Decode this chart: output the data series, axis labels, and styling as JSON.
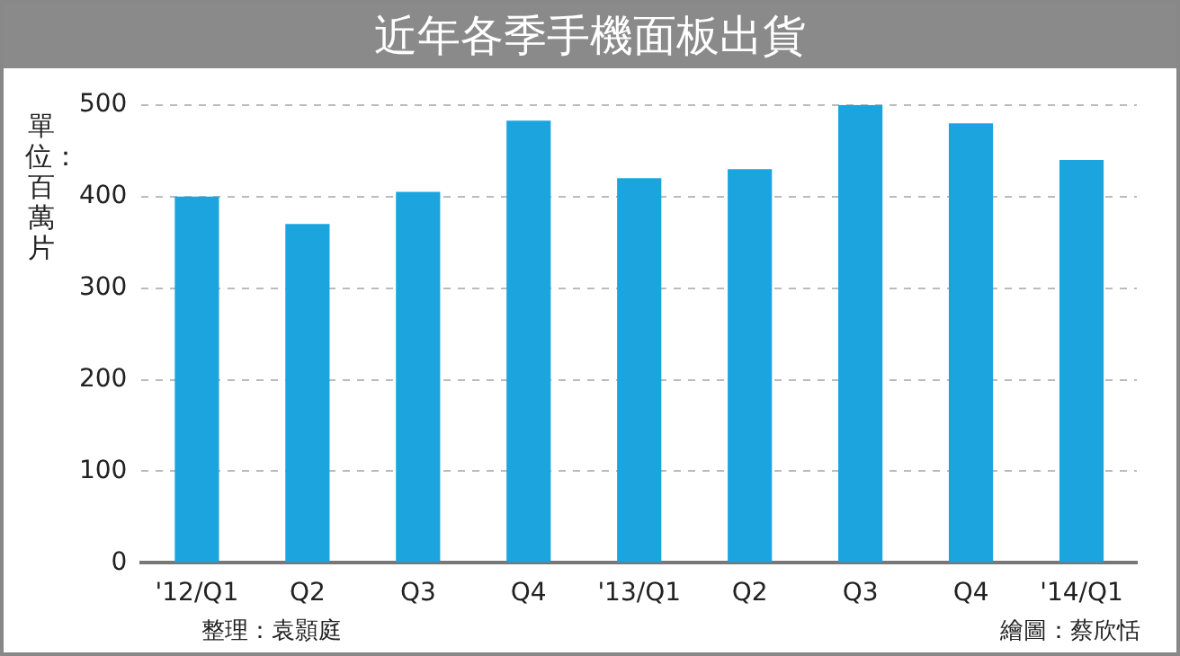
{
  "chart_data": {
    "type": "bar",
    "title": "近年各季手機面板出貨",
    "ylabel": "單位：百萬片",
    "categories": [
      "'12/Q1",
      "Q2",
      "Q3",
      "Q4",
      "'13/Q1",
      "Q2",
      "Q3",
      "Q4",
      "'14/Q1"
    ],
    "values": [
      400,
      370,
      405,
      483,
      420,
      430,
      500,
      480,
      440
    ],
    "color": "#1ca4de",
    "ylim": [
      0,
      500
    ],
    "yticks": [
      0,
      100,
      200,
      300,
      400,
      500
    ],
    "grid": "y",
    "annotations": [
      "整理：袁顥庭",
      "繪圖：蔡欣恬"
    ]
  }
}
